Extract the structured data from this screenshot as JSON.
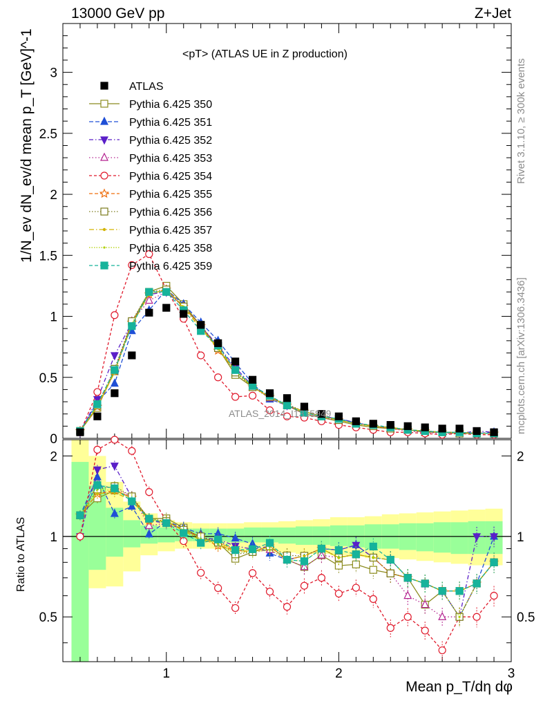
{
  "header": {
    "energy_label": "13000 GeV pp",
    "process_label": "Z+Jet"
  },
  "side_labels": {
    "rivet": "Rivet 3.1.10, ≥ 300k events",
    "site": "mcplots.cern.ch [arXiv:1306.3436]"
  },
  "chart_data": {
    "type": "scatter",
    "title": "<pT> (ATLAS UE in Z production)",
    "watermark": "ATLAS_2014_I1315949",
    "xlabel": "Mean p_T/dη dφ",
    "ylabel": "1/N_ev dN_ev/d mean p_T [GeV]^-1",
    "ratio_ylabel": "Ratio to ATLAS",
    "xlim": [
      0.4,
      3.0
    ],
    "ylim": [
      0,
      3.4
    ],
    "ratio_ylim": [
      0.34,
      2.3
    ],
    "x_ticks": [
      1,
      2,
      3
    ],
    "y_ticks": [
      0,
      0.5,
      1,
      1.5,
      2,
      2.5,
      3
    ],
    "ratio_ticks": [
      0.5,
      1,
      2
    ],
    "legend_position": "top-left",
    "x": [
      0.5,
      0.6,
      0.7,
      0.8,
      0.9,
      1.0,
      1.1,
      1.2,
      1.3,
      1.4,
      1.5,
      1.6,
      1.7,
      1.8,
      1.9,
      2.0,
      2.1,
      2.2,
      2.3,
      2.4,
      2.5,
      2.6,
      2.7,
      2.8,
      2.9
    ],
    "data": {
      "name": "ATLAS",
      "values": [
        0.05,
        0.18,
        0.37,
        0.68,
        1.03,
        1.07,
        1.02,
        0.93,
        0.78,
        0.63,
        0.48,
        0.37,
        0.33,
        0.26,
        0.2,
        0.18,
        0.14,
        0.12,
        0.11,
        0.1,
        0.09,
        0.08,
        0.08,
        0.06,
        0.05
      ]
    },
    "mc_band": {
      "green_lo": [
        0.34,
        0.75,
        0.84,
        0.91,
        0.94,
        0.95,
        0.96,
        0.96,
        0.96,
        0.95,
        0.95,
        0.95,
        0.94,
        0.93,
        0.93,
        0.92,
        0.91,
        0.9,
        0.9,
        0.89,
        0.88,
        0.87,
        0.86,
        0.86,
        0.86
      ],
      "green_hi": [
        1.9,
        1.55,
        1.28,
        1.15,
        1.1,
        1.08,
        1.07,
        1.07,
        1.07,
        1.07,
        1.08,
        1.08,
        1.08,
        1.09,
        1.09,
        1.1,
        1.1,
        1.11,
        1.11,
        1.12,
        1.12,
        1.13,
        1.13,
        1.14,
        1.14
      ],
      "yellow_lo": [
        0.34,
        0.64,
        0.65,
        0.74,
        0.85,
        0.88,
        0.9,
        0.9,
        0.9,
        0.88,
        0.88,
        0.88,
        0.87,
        0.86,
        0.86,
        0.85,
        0.84,
        0.83,
        0.83,
        0.82,
        0.81,
        0.8,
        0.79,
        0.78,
        0.78
      ],
      "yellow_hi": [
        2.3,
        2.0,
        1.6,
        1.35,
        1.22,
        1.15,
        1.13,
        1.12,
        1.12,
        1.12,
        1.13,
        1.13,
        1.14,
        1.15,
        1.16,
        1.18,
        1.18,
        1.19,
        1.21,
        1.22,
        1.23,
        1.24,
        1.25,
        1.26,
        1.27
      ]
    },
    "series": [
      {
        "name": "Pythia 6.425 350",
        "color": "#8b8b1e",
        "dash": "solid",
        "marker": "square-open",
        "values": [
          0.06,
          0.25,
          0.55,
          0.95,
          1.2,
          1.25,
          1.1,
          0.92,
          0.74,
          0.52,
          0.42,
          0.34,
          0.27,
          0.2,
          0.17,
          0.14,
          0.11,
          0.09,
          0.08,
          0.07,
          0.05,
          0.05,
          0.05,
          0.04,
          0.04
        ]
      },
      {
        "name": "Pythia 6.425 351",
        "color": "#1f4fd6",
        "dash": "6,3",
        "marker": "triangle-up",
        "values": [
          0.06,
          0.3,
          0.45,
          0.88,
          1.05,
          1.22,
          1.1,
          0.95,
          0.8,
          0.62,
          0.45,
          0.32,
          0.27,
          0.22,
          0.18,
          0.16,
          0.13,
          0.1,
          0.09,
          0.07,
          0.06,
          0.05,
          0.04,
          0.04,
          0.05
        ]
      },
      {
        "name": "Pythia 6.425 352",
        "color": "#5a1fc8",
        "dash": "6,3,1.5,3",
        "marker": "triangle-down",
        "values": [
          0.05,
          0.32,
          0.68,
          0.95,
          1.18,
          1.2,
          1.08,
          0.92,
          0.76,
          0.58,
          0.43,
          0.34,
          0.27,
          0.22,
          0.18,
          0.16,
          0.13,
          0.1,
          0.09,
          0.07,
          0.06,
          0.05,
          0.04,
          0.06,
          0.05
        ]
      },
      {
        "name": "Pythia 6.425 353",
        "color": "#b3208f",
        "dash": "1.5,3",
        "marker": "triangle-up-open",
        "values": [
          0.06,
          0.28,
          0.56,
          0.96,
          1.13,
          1.2,
          1.08,
          0.92,
          0.75,
          0.56,
          0.42,
          0.33,
          0.27,
          0.2,
          0.17,
          0.15,
          0.12,
          0.1,
          0.08,
          0.06,
          0.05,
          0.04,
          0.04,
          0.04,
          0.04
        ]
      },
      {
        "name": "Pythia 6.425 354",
        "color": "#e0182a",
        "dash": "4,3",
        "marker": "circle-open",
        "values": [
          0.05,
          0.38,
          1.01,
          1.42,
          1.51,
          1.22,
          0.98,
          0.68,
          0.5,
          0.34,
          0.35,
          0.23,
          0.18,
          0.17,
          0.14,
          0.11,
          0.09,
          0.07,
          0.05,
          0.05,
          0.04,
          0.03,
          0.04,
          0.03,
          0.03
        ]
      },
      {
        "name": "Pythia 6.425 355",
        "color": "#ef6d0b",
        "dash": "5,3",
        "marker": "star-open",
        "values": [
          0.06,
          0.26,
          0.55,
          0.95,
          1.18,
          1.22,
          1.08,
          0.92,
          0.72,
          0.56,
          0.42,
          0.34,
          0.27,
          0.22,
          0.18,
          0.15,
          0.12,
          0.1,
          0.08,
          0.07,
          0.06,
          0.05,
          0.05,
          0.04,
          0.04
        ]
      },
      {
        "name": "Pythia 6.425 356",
        "color": "#7a7a1a",
        "dash": "1.5,2.5",
        "marker": "square-open",
        "values": [
          0.06,
          0.27,
          0.57,
          0.96,
          1.2,
          1.22,
          1.08,
          0.93,
          0.74,
          0.54,
          0.42,
          0.34,
          0.28,
          0.22,
          0.18,
          0.15,
          0.12,
          0.1,
          0.08,
          0.07,
          0.06,
          0.05,
          0.04,
          0.04,
          0.04
        ]
      },
      {
        "name": "Pythia 6.425 357",
        "color": "#d3b300",
        "dash": "7,3,1.5,3",
        "marker": "dot",
        "values": [
          0.06,
          0.26,
          0.54,
          0.93,
          1.18,
          1.22,
          1.07,
          0.9,
          0.74,
          0.56,
          0.42,
          0.34,
          0.27,
          0.22,
          0.18,
          0.15,
          0.12,
          0.1,
          0.09,
          0.07,
          0.06,
          0.05,
          0.05,
          0.04,
          0.04
        ]
      },
      {
        "name": "Pythia 6.425 358",
        "color": "#b0d000",
        "dash": "1.5,2",
        "marker": "dot-small",
        "values": [
          0.06,
          0.27,
          0.55,
          0.94,
          1.19,
          1.21,
          1.08,
          0.91,
          0.73,
          0.55,
          0.42,
          0.33,
          0.27,
          0.21,
          0.18,
          0.15,
          0.12,
          0.1,
          0.09,
          0.07,
          0.06,
          0.05,
          0.04,
          0.04,
          0.04
        ]
      },
      {
        "name": "Pythia 6.425 359",
        "color": "#16b39b",
        "dash": "5,3",
        "marker": "square",
        "values": [
          0.06,
          0.28,
          0.56,
          0.92,
          1.2,
          1.2,
          1.05,
          0.88,
          0.76,
          0.56,
          0.43,
          0.35,
          0.27,
          0.21,
          0.18,
          0.16,
          0.12,
          0.11,
          0.09,
          0.07,
          0.06,
          0.05,
          0.05,
          0.04,
          0.04
        ]
      }
    ]
  }
}
